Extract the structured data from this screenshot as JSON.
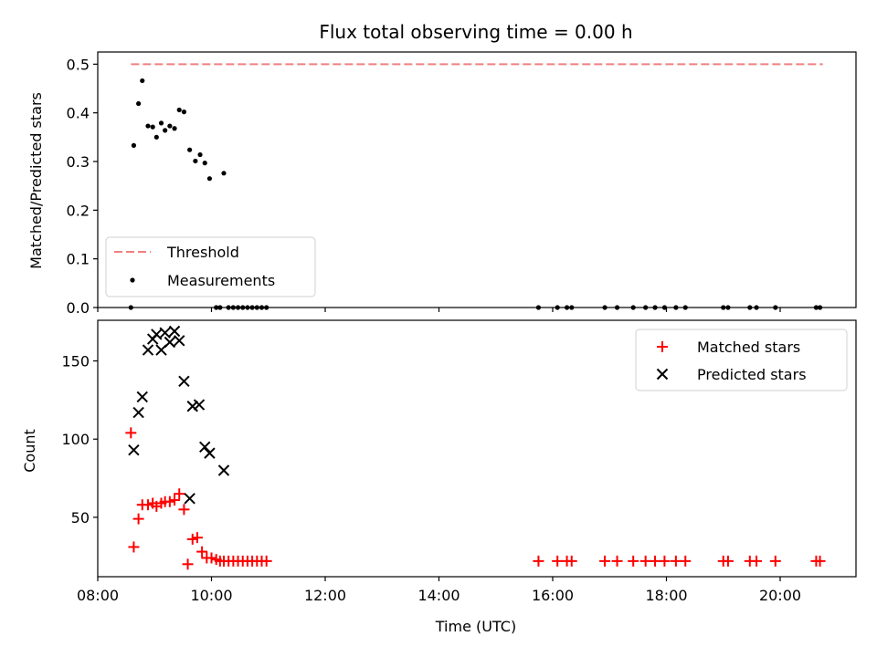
{
  "chart_data": [
    {
      "type": "scatter",
      "title": "Flux total observing time = 0.00 h",
      "xlabel": "",
      "ylabel": "Matched/Predicted stars",
      "xlim": [
        "08:00",
        "21:20"
      ],
      "ylim": [
        0,
        0.525
      ],
      "yticks": [
        "0.0",
        "0.1",
        "0.2",
        "0.3",
        "0.4",
        "0.5"
      ],
      "legend": {
        "placement": "lower-left",
        "entries": [
          "Threshold",
          "Measurements"
        ]
      },
      "threshold": {
        "name": "Threshold",
        "value": 0.5,
        "x": [
          "08:35",
          "20:45"
        ],
        "color": "#f08080"
      },
      "series": [
        {
          "name": "Measurements",
          "color": "#000000",
          "points": [
            [
              "08:35",
              0.0
            ],
            [
              "08:38",
              0.333
            ],
            [
              "08:43",
              0.419
            ],
            [
              "08:47",
              0.466
            ],
            [
              "08:53",
              0.373
            ],
            [
              "08:58",
              0.371
            ],
            [
              "09:02",
              0.35
            ],
            [
              "09:07",
              0.379
            ],
            [
              "09:11",
              0.364
            ],
            [
              "09:16",
              0.373
            ],
            [
              "09:21",
              0.368
            ],
            [
              "09:26",
              0.406
            ],
            [
              "09:31",
              0.402
            ],
            [
              "09:37",
              0.324
            ],
            [
              "09:43",
              0.301
            ],
            [
              "09:48",
              0.314
            ],
            [
              "09:53",
              0.297
            ],
            [
              "09:58",
              0.265
            ],
            [
              "10:05",
              0.0
            ],
            [
              "10:09",
              0.0
            ],
            [
              "10:13",
              0.276
            ],
            [
              "10:18",
              0.0
            ],
            [
              "10:23",
              0.0
            ],
            [
              "10:28",
              0.0
            ],
            [
              "10:33",
              0.0
            ],
            [
              "10:38",
              0.0
            ],
            [
              "10:43",
              0.0
            ],
            [
              "10:48",
              0.0
            ],
            [
              "10:53",
              0.0
            ],
            [
              "10:58",
              0.0
            ],
            [
              "15:45",
              0.0
            ],
            [
              "16:05",
              0.0
            ],
            [
              "16:15",
              0.0
            ],
            [
              "16:20",
              0.0
            ],
            [
              "16:55",
              0.0
            ],
            [
              "17:08",
              0.0
            ],
            [
              "17:25",
              0.0
            ],
            [
              "17:38",
              0.0
            ],
            [
              "17:48",
              0.0
            ],
            [
              "17:58",
              0.0
            ],
            [
              "18:10",
              0.0
            ],
            [
              "18:20",
              0.0
            ],
            [
              "19:00",
              0.0
            ],
            [
              "19:05",
              0.0
            ],
            [
              "19:28",
              0.0
            ],
            [
              "19:35",
              0.0
            ],
            [
              "19:55",
              0.0
            ],
            [
              "20:38",
              0.0
            ],
            [
              "20:42",
              0.0
            ]
          ]
        }
      ]
    },
    {
      "type": "scatter",
      "title": "",
      "xlabel": "Time (UTC)",
      "ylabel": "Count",
      "xlim": [
        "08:00",
        "21:20"
      ],
      "ylim": [
        12,
        176
      ],
      "xticks": [
        "08:00",
        "10:00",
        "12:00",
        "14:00",
        "16:00",
        "18:00",
        "20:00"
      ],
      "yticks": [
        "50",
        "100",
        "150"
      ],
      "legend": {
        "placement": "upper-right",
        "entries": [
          "Matched stars",
          "Predicted stars"
        ]
      },
      "series": [
        {
          "name": "Matched stars",
          "marker": "plus",
          "color": "#ff0000",
          "points": [
            [
              "08:35",
              104
            ],
            [
              "08:38",
              31
            ],
            [
              "08:43",
              49
            ],
            [
              "08:47",
              58
            ],
            [
              "08:53",
              58
            ],
            [
              "08:58",
              59
            ],
            [
              "09:02",
              57
            ],
            [
              "09:07",
              59
            ],
            [
              "09:11",
              60
            ],
            [
              "09:16",
              60
            ],
            [
              "09:21",
              61
            ],
            [
              "09:26",
              65
            ],
            [
              "09:31",
              55
            ],
            [
              "09:35",
              20
            ],
            [
              "09:40",
              36
            ],
            [
              "09:45",
              37
            ],
            [
              "09:50",
              28
            ],
            [
              "09:55",
              24
            ],
            [
              "10:00",
              24
            ],
            [
              "10:05",
              23
            ],
            [
              "10:09",
              22
            ],
            [
              "10:13",
              22
            ],
            [
              "10:18",
              22
            ],
            [
              "10:23",
              22
            ],
            [
              "10:28",
              22
            ],
            [
              "10:33",
              22
            ],
            [
              "10:38",
              22
            ],
            [
              "10:43",
              22
            ],
            [
              "10:48",
              22
            ],
            [
              "10:53",
              22
            ],
            [
              "10:58",
              22
            ],
            [
              "15:45",
              22
            ],
            [
              "16:05",
              22
            ],
            [
              "16:15",
              22
            ],
            [
              "16:20",
              22
            ],
            [
              "16:55",
              22
            ],
            [
              "17:08",
              22
            ],
            [
              "17:25",
              22
            ],
            [
              "17:38",
              22
            ],
            [
              "17:48",
              22
            ],
            [
              "17:58",
              22
            ],
            [
              "18:10",
              22
            ],
            [
              "18:20",
              22
            ],
            [
              "19:00",
              22
            ],
            [
              "19:05",
              22
            ],
            [
              "19:28",
              22
            ],
            [
              "19:35",
              22
            ],
            [
              "19:55",
              22
            ],
            [
              "20:38",
              22
            ],
            [
              "20:42",
              22
            ]
          ]
        },
        {
          "name": "Predicted stars",
          "marker": "x",
          "color": "#000000",
          "points": [
            [
              "08:38",
              93
            ],
            [
              "08:43",
              117
            ],
            [
              "08:47",
              127
            ],
            [
              "08:53",
              157
            ],
            [
              "08:58",
              164
            ],
            [
              "09:02",
              167
            ],
            [
              "09:07",
              157
            ],
            [
              "09:11",
              168
            ],
            [
              "09:16",
              162
            ],
            [
              "09:21",
              169
            ],
            [
              "09:26",
              163
            ],
            [
              "09:31",
              137
            ],
            [
              "09:37",
              62
            ],
            [
              "09:40",
              121
            ],
            [
              "09:47",
              122
            ],
            [
              "09:53",
              95
            ],
            [
              "09:58",
              91
            ],
            [
              "10:13",
              80
            ]
          ]
        }
      ]
    }
  ]
}
